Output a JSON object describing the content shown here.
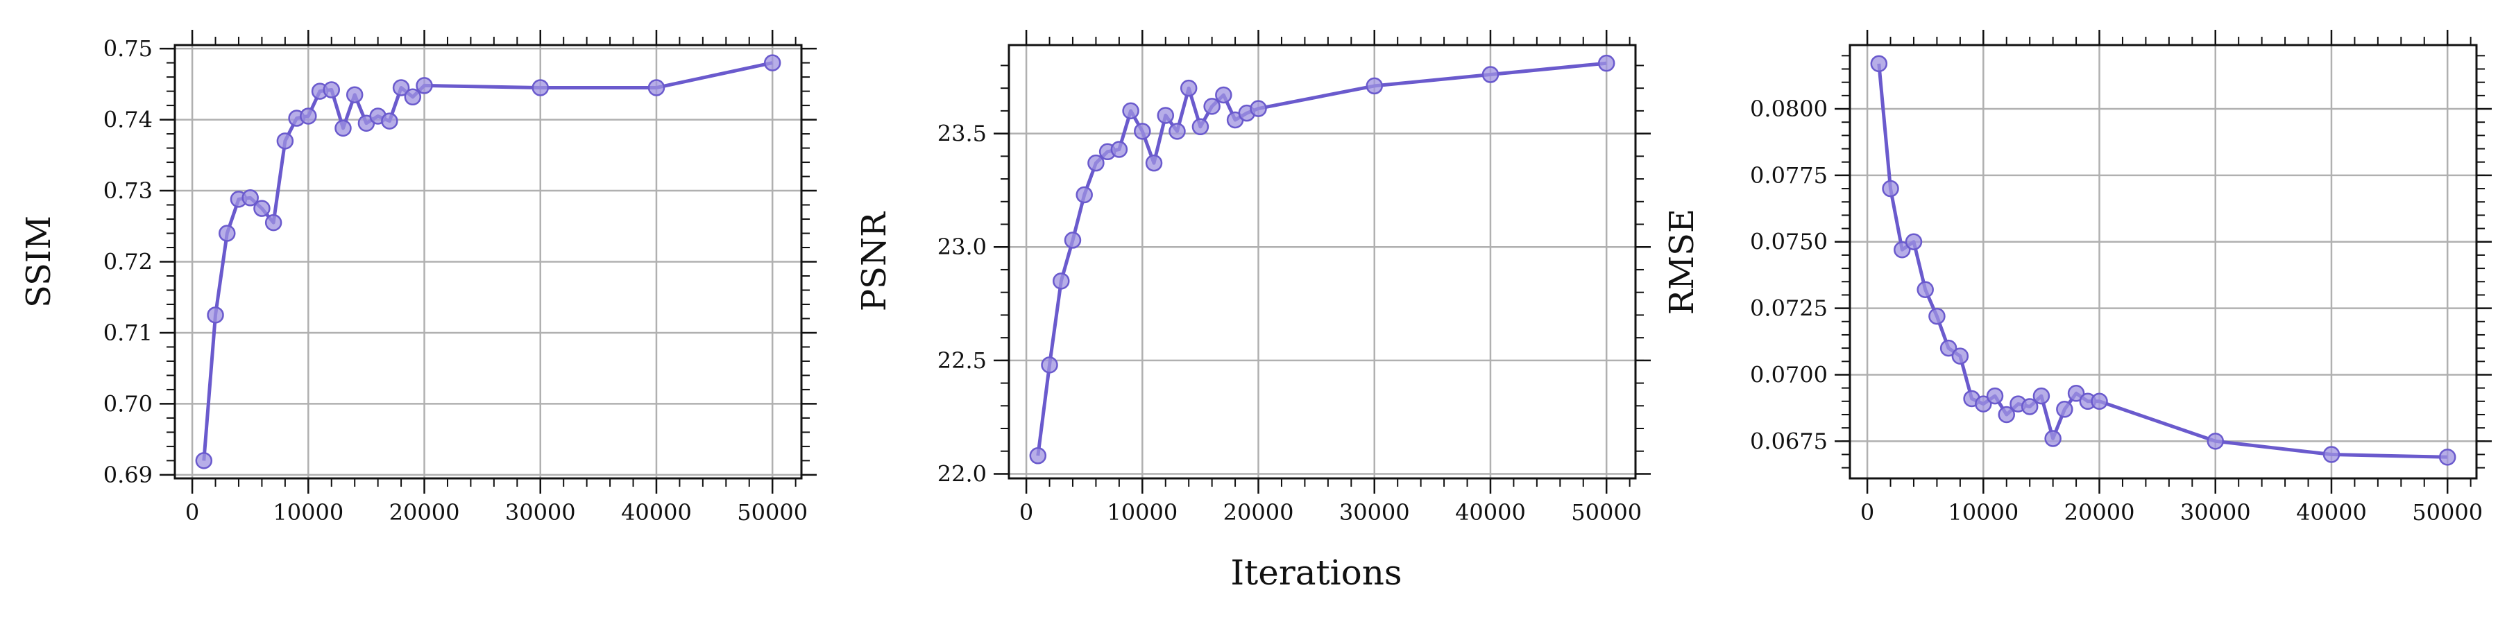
{
  "figure": {
    "xlabel": "Iterations",
    "line_color": "#6a5acd",
    "marker_fill": "#9f93e0",
    "grid": true
  },
  "chart_data": [
    {
      "type": "line",
      "ylabel": "SSIM",
      "xlim": [
        -1500,
        52500
      ],
      "ylim": [
        0.6895,
        0.7505
      ],
      "xticks": [
        "0",
        "10000",
        "20000",
        "30000",
        "40000",
        "50000"
      ],
      "yticks": [
        "0.69",
        "0.70",
        "0.71",
        "0.72",
        "0.73",
        "0.74",
        "0.75"
      ],
      "series": [
        {
          "x": [
            1000,
            2000,
            3000,
            4000,
            5000,
            6000,
            7000,
            8000,
            9000,
            10000,
            11000,
            12000,
            13000,
            14000,
            15000,
            16000,
            17000,
            18000,
            19000,
            20000,
            30000,
            40000,
            50000
          ],
          "y": [
            0.692,
            0.7125,
            0.724,
            0.7288,
            0.729,
            0.7275,
            0.7255,
            0.737,
            0.7402,
            0.7405,
            0.744,
            0.7442,
            0.7388,
            0.7435,
            0.7395,
            0.7405,
            0.7398,
            0.7445,
            0.7432,
            0.7448,
            0.7445,
            0.7445,
            0.748
          ]
        }
      ]
    },
    {
      "type": "line",
      "ylabel": "PSNR",
      "xlim": [
        -1500,
        52500
      ],
      "ylim": [
        21.98,
        23.89
      ],
      "xticks": [
        "0",
        "10000",
        "20000",
        "30000",
        "40000",
        "50000"
      ],
      "yticks": [
        "22.0",
        "22.5",
        "23.0",
        "23.5"
      ],
      "series": [
        {
          "x": [
            1000,
            2000,
            3000,
            4000,
            5000,
            6000,
            7000,
            8000,
            9000,
            10000,
            11000,
            12000,
            13000,
            14000,
            15000,
            16000,
            17000,
            18000,
            19000,
            20000,
            30000,
            40000,
            50000
          ],
          "y": [
            22.08,
            22.48,
            22.85,
            23.03,
            23.23,
            23.37,
            23.42,
            23.43,
            23.6,
            23.51,
            23.37,
            23.58,
            23.51,
            23.7,
            23.53,
            23.62,
            23.67,
            23.56,
            23.59,
            23.61,
            23.71,
            23.76,
            23.81
          ]
        }
      ]
    },
    {
      "type": "line",
      "ylabel": "RMSE",
      "xlim": [
        -1500,
        52500
      ],
      "ylim": [
        0.0661,
        0.0824
      ],
      "xticks": [
        "0",
        "10000",
        "20000",
        "30000",
        "40000",
        "50000"
      ],
      "yticks": [
        "0.0675",
        "0.0700",
        "0.0725",
        "0.0750",
        "0.0775",
        "0.0800"
      ],
      "series": [
        {
          "x": [
            1000,
            2000,
            3000,
            4000,
            5000,
            6000,
            7000,
            8000,
            9000,
            10000,
            11000,
            12000,
            13000,
            14000,
            15000,
            16000,
            17000,
            18000,
            19000,
            20000,
            30000,
            40000,
            50000
          ],
          "y": [
            0.0817,
            0.077,
            0.0747,
            0.075,
            0.0732,
            0.0722,
            0.071,
            0.0707,
            0.0691,
            0.0689,
            0.0692,
            0.0685,
            0.0689,
            0.0688,
            0.0692,
            0.0676,
            0.0687,
            0.0693,
            0.069,
            0.069,
            0.0675,
            0.067,
            0.0669
          ]
        }
      ]
    }
  ]
}
